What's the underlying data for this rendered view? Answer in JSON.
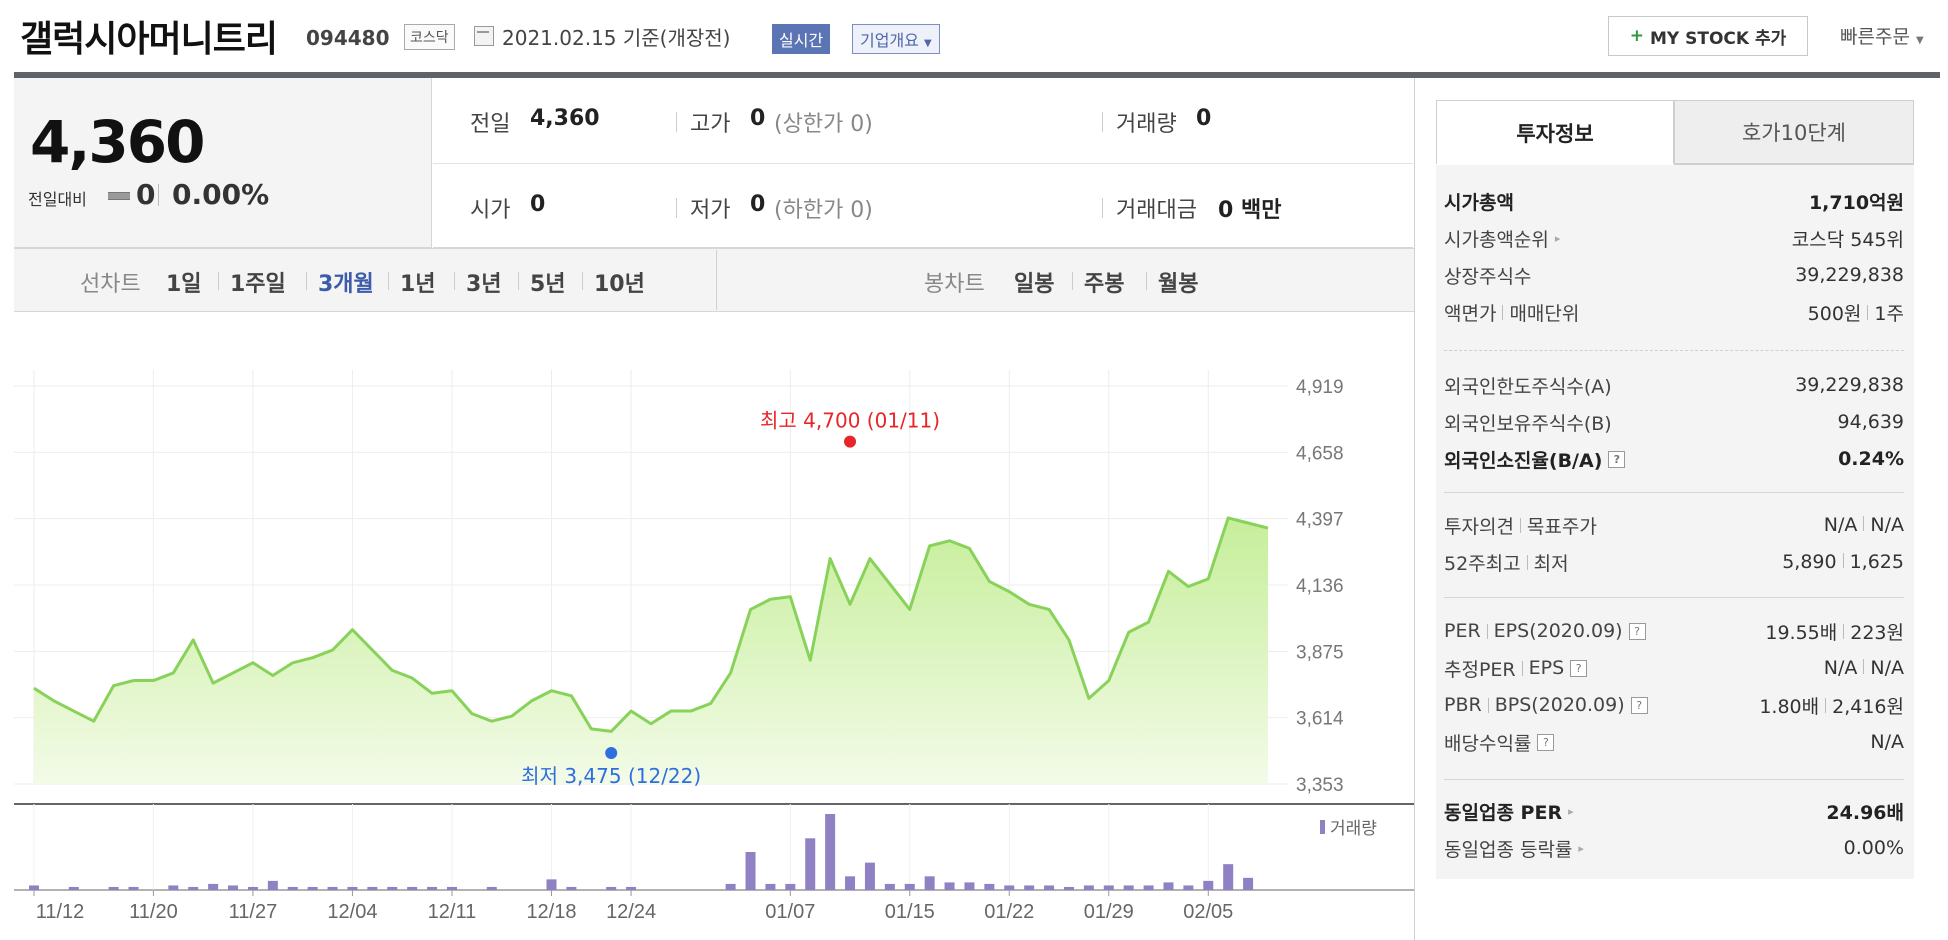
{
  "header": {
    "company_name": "갤럭시아머니트리",
    "code": "094480",
    "market_tag": "코스닥",
    "date_text": "2021.02.15 기준(개장전)",
    "realtime_label": "실시간",
    "company_info_label": "기업개요",
    "mystock_label": "MY STOCK 추가",
    "quick_order_label": "빠른주문"
  },
  "price": {
    "current": "4,360",
    "compare_label": "전일대비",
    "change": "0",
    "change_rate": "0.00%"
  },
  "stats": {
    "prev_label": "전일",
    "prev_value": "4,360",
    "high_label": "고가",
    "high_value": "0",
    "upper_limit": "(상한가 0)",
    "volume_label": "거래량",
    "volume_value": "0",
    "open_label": "시가",
    "open_value": "0",
    "low_label": "저가",
    "low_value": "0",
    "lower_limit": "(하한가 0)",
    "amount_label": "거래대금",
    "amount_value": "0 백만"
  },
  "period_bar": {
    "line_chart_label": "선차트",
    "line_periods": [
      "1일",
      "1주일",
      "3개월",
      "1년",
      "3년",
      "5년",
      "10년"
    ],
    "active_period": "3개월",
    "candle_chart_label": "봉차트",
    "candle_periods": [
      "일봉",
      "주봉",
      "월봉"
    ]
  },
  "side_panel": {
    "tabs": [
      "투자정보",
      "호가10단계"
    ],
    "active_tab": "투자정보",
    "groups": [
      [
        {
          "label": "시가총액",
          "value": "1,710억원",
          "bold": true
        },
        {
          "label": "시가총액순위",
          "value": "코스닥 545위",
          "arrow": true
        },
        {
          "label": "상장주식수",
          "value": "39,229,838"
        },
        {
          "label": "액면가",
          "label2": "매매단위",
          "value": "500원",
          "value2": "1주"
        }
      ],
      [
        {
          "label": "외국인한도주식수(A)",
          "value": "39,229,838"
        },
        {
          "label": "외국인보유주식수(B)",
          "value": "94,639"
        },
        {
          "label": "외국인소진율(B/A)",
          "value": "0.24%",
          "bold": true,
          "help": true
        }
      ],
      [
        {
          "label": "투자의견",
          "label2": "목표주가",
          "value": "N/A",
          "value2": "N/A"
        },
        {
          "label": "52주최고",
          "label2": "최저",
          "value": "5,890",
          "value2": "1,625"
        }
      ],
      [
        {
          "label": "PER",
          "label2": "EPS(2020.09)",
          "value": "19.55배",
          "value2": "223원",
          "help": true
        },
        {
          "label": "추정PER",
          "label2": "EPS",
          "value": "N/A",
          "value2": "N/A",
          "help": true
        },
        {
          "label": "PBR",
          "label2": "BPS(2020.09)",
          "value": "1.80배",
          "value2": "2,416원",
          "help": true
        },
        {
          "label": "배당수익률",
          "value": "N/A",
          "help": true
        }
      ],
      [
        {
          "label": "동일업종 PER",
          "value": "24.96배",
          "bold": true,
          "arrow": true
        },
        {
          "label": "동일업종 등락률",
          "value": "0.00%",
          "arrow": true
        }
      ]
    ]
  },
  "chart_data": {
    "type": "area",
    "ylim": [
      3353,
      4919
    ],
    "y_ticks": [
      "4,919",
      "4,658",
      "4,397",
      "4,136",
      "3,875",
      "3,614",
      "3,353"
    ],
    "x_tick_labels": [
      "11/12",
      "11/20",
      "11/27",
      "12/04",
      "12/11",
      "12/18",
      "12/24",
      "01/07",
      "01/15",
      "01/22",
      "01/29",
      "02/05"
    ],
    "x_tick_index": [
      0,
      6,
      11,
      16,
      21,
      26,
      30,
      38,
      44,
      49,
      54,
      59
    ],
    "n_points": 63,
    "series": [
      {
        "values": [
          3730,
          3680,
          3640,
          3600,
          3740,
          3760,
          3760,
          3790,
          3920,
          3750,
          3790,
          3830,
          3780,
          3830,
          3850,
          3880,
          3960,
          3880,
          3800,
          3770,
          3710,
          3720,
          3630,
          3600,
          3620,
          3680,
          3720,
          3700,
          3570,
          3560,
          3640,
          3590,
          3640,
          3640,
          3670,
          3790,
          4040,
          4080,
          4090,
          3840,
          4240,
          4060,
          4240,
          4140,
          4040,
          4290,
          4310,
          4280,
          4150,
          4110,
          4060,
          4040,
          3920,
          3690,
          3760,
          3950,
          3990,
          4190,
          4130,
          4160,
          4400,
          4380,
          4360
        ]
      }
    ],
    "volume_label": "거래량",
    "volume": [
      3,
      0,
      2,
      0,
      2,
      2,
      0,
      3,
      2,
      4,
      3,
      2,
      6,
      2,
      2,
      2,
      2,
      2,
      2,
      2,
      2,
      2,
      0,
      2,
      0,
      0,
      7,
      2,
      0,
      2,
      2,
      0,
      0,
      0,
      0,
      4,
      25,
      4,
      4,
      34,
      50,
      9,
      18,
      4,
      4,
      9,
      5,
      5,
      4,
      3,
      3,
      3,
      2,
      3,
      3,
      3,
      3,
      5,
      3,
      6,
      17,
      8,
      0
    ],
    "high": {
      "text": "최고 4,700 (01/11)",
      "value": 4700,
      "index": 41
    },
    "low": {
      "text": "최저 3,475 (12/22)",
      "value": 3475,
      "index": 29
    }
  }
}
